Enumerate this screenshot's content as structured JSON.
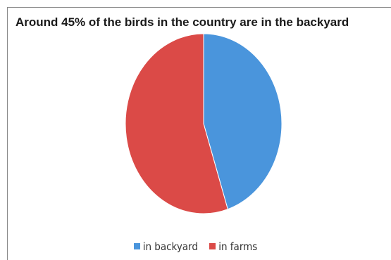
{
  "chart_data": {
    "type": "pie",
    "title": "Around 45% of the birds in the country are in the backyard",
    "slices": [
      {
        "label": "in backyard",
        "value": 45,
        "color": "#4a95dc"
      },
      {
        "label": "in farms",
        "value": 55,
        "color": "#db4a47"
      }
    ],
    "legend_position": "bottom"
  }
}
